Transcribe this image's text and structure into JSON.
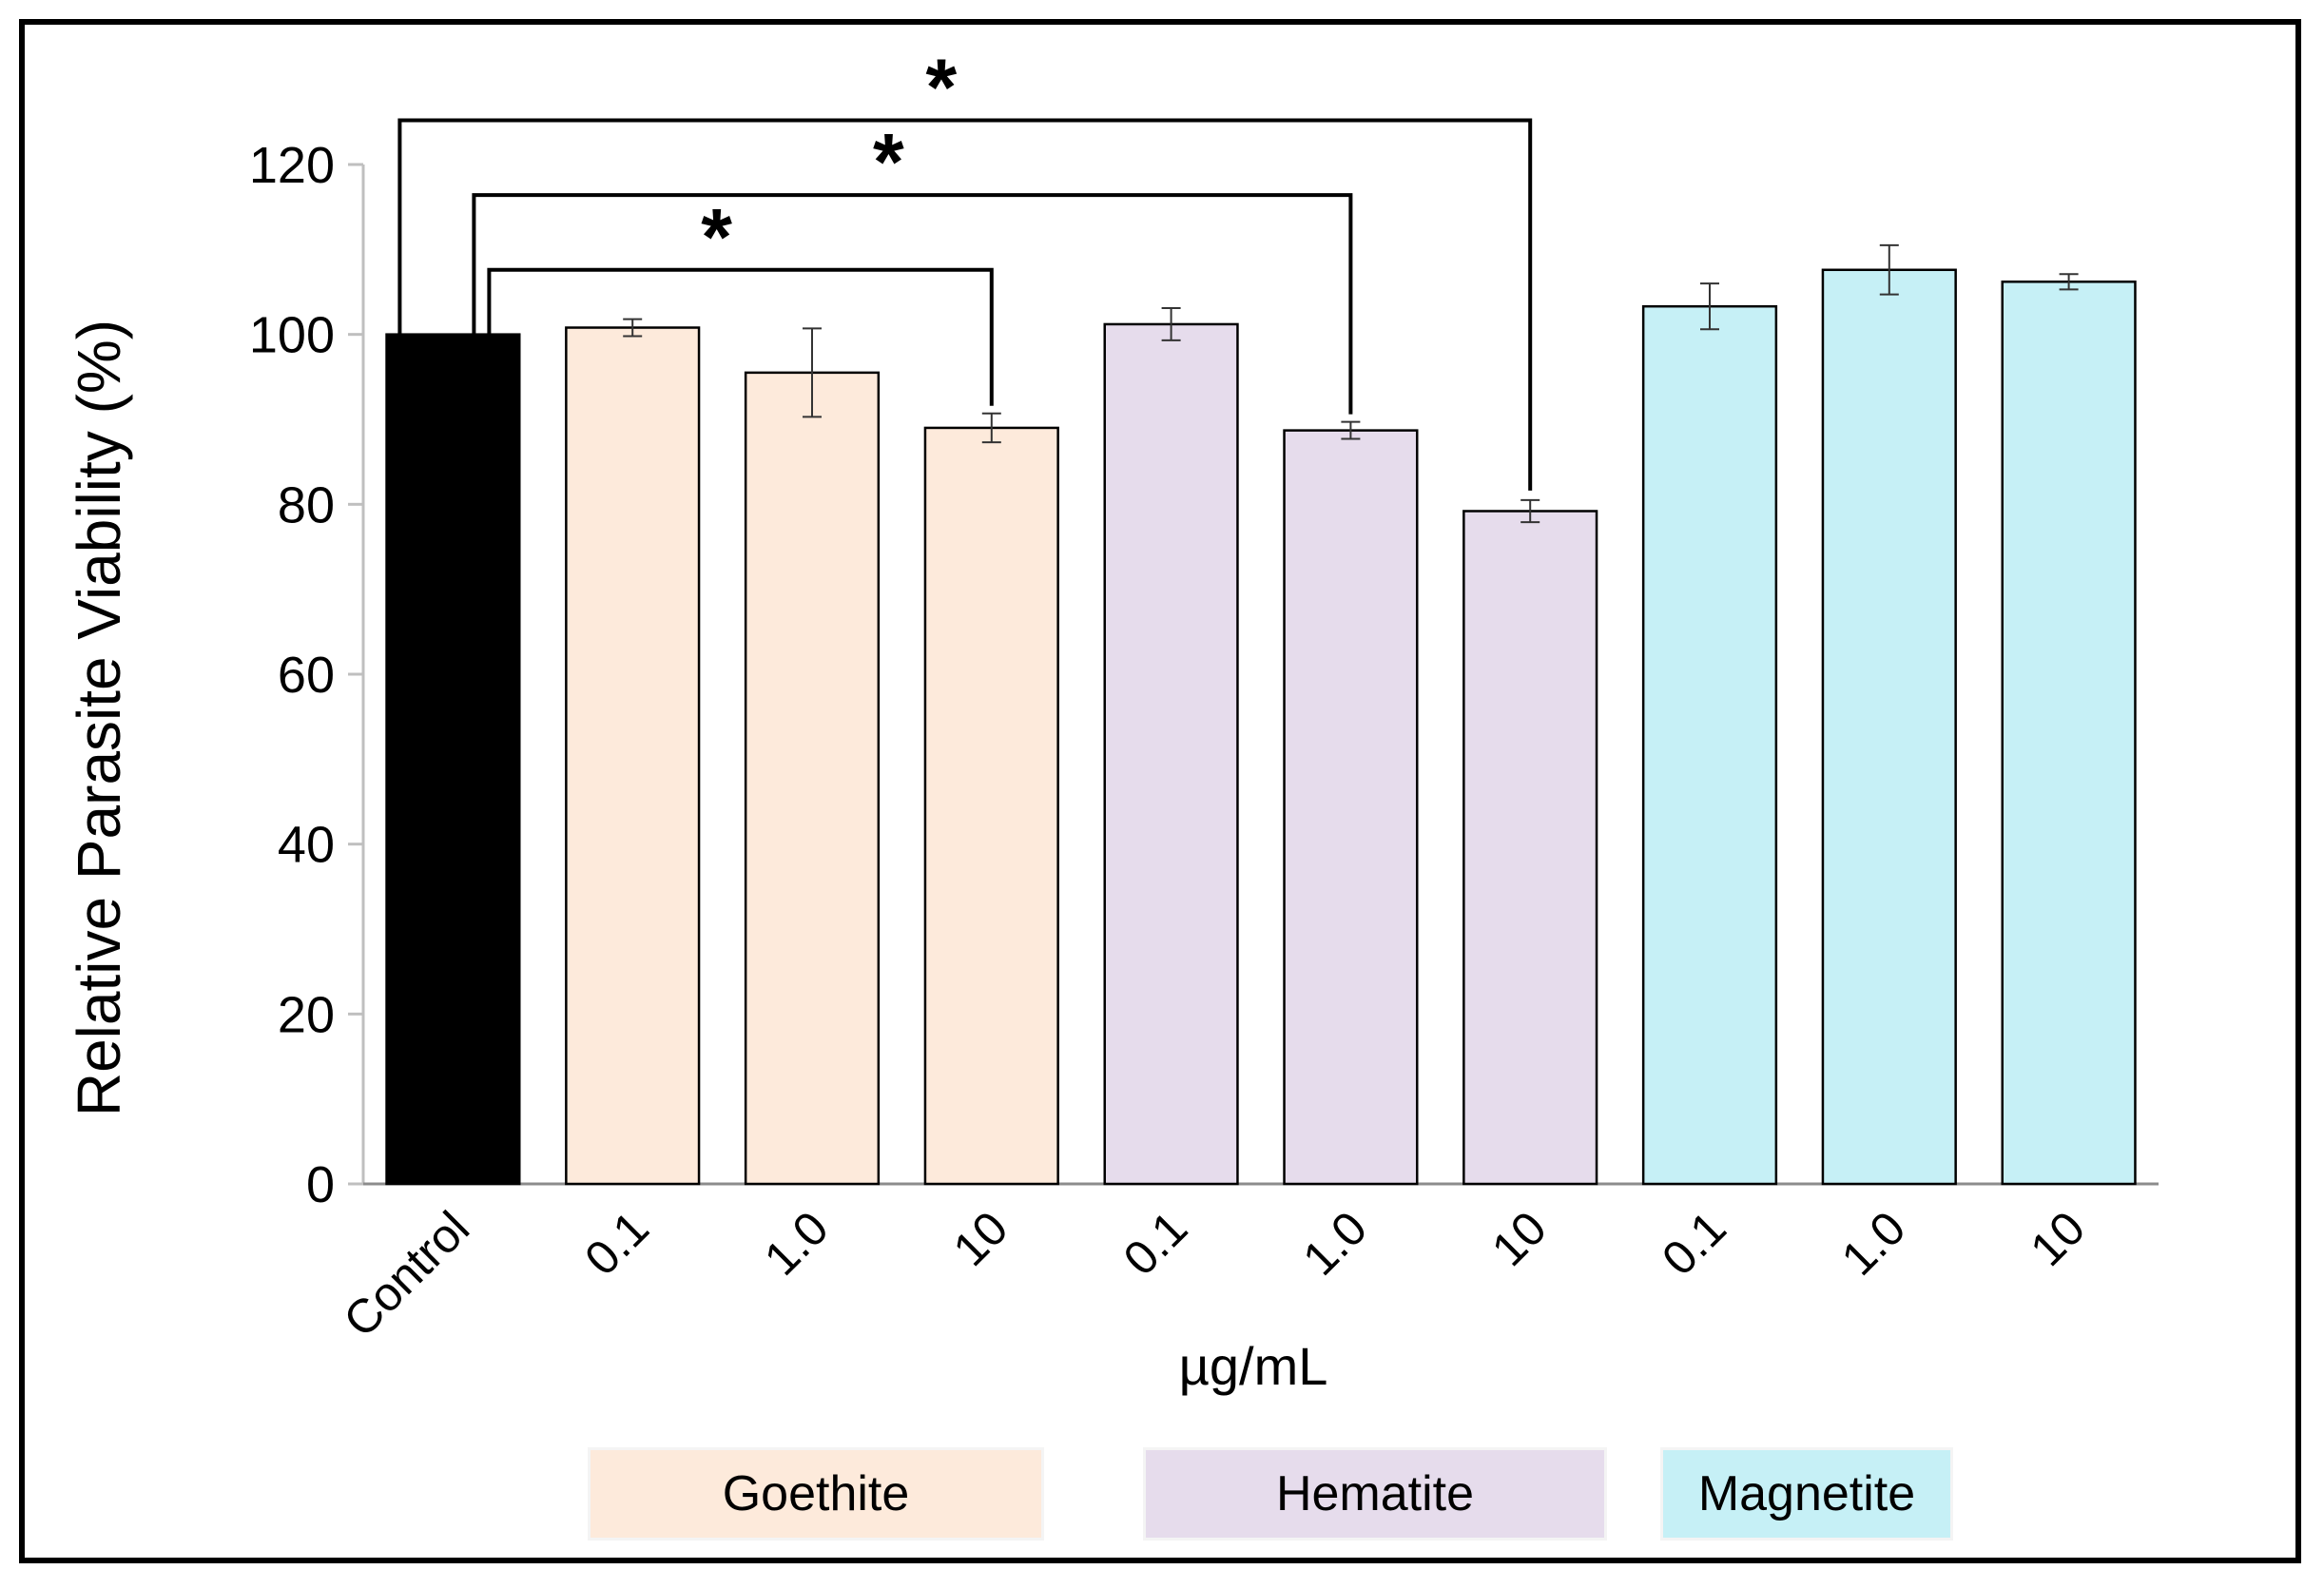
{
  "chart_data": {
    "type": "bar",
    "title": "",
    "xlabel": "µg/mL",
    "ylabel": "Relative Parasite Viability (%)",
    "ylim": [
      0,
      120
    ],
    "yticks": [
      0,
      20,
      40,
      60,
      80,
      100,
      120
    ],
    "grid": false,
    "categories": [
      "Control",
      "0.1",
      "1.0",
      "10",
      "0.1",
      "1.0",
      "10",
      "0.1",
      "1.0",
      "10"
    ],
    "groups": [
      "Control",
      "Goethite",
      "Goethite",
      "Goethite",
      "Hematite",
      "Hematite",
      "Hematite",
      "Magnetite",
      "Magnetite",
      "Magnetite"
    ],
    "values": [
      100,
      100.8,
      95.5,
      89,
      101.2,
      88.7,
      79.2,
      103.3,
      107.6,
      106.2
    ],
    "errors": [
      0,
      1.0,
      5.2,
      1.7,
      1.9,
      1.0,
      1.3,
      2.7,
      2.9,
      0.9
    ],
    "colors": {
      "Control": "#000000",
      "Goethite": "#fdeadb",
      "Hematite": "#e6dcec",
      "Magnetite": "#c6f0f6"
    },
    "legend": [
      {
        "label": "Goethite",
        "color": "#fdeadb"
      },
      {
        "label": "Hematite",
        "color": "#e6dcec"
      },
      {
        "label": "Magnetite",
        "color": "#c6f0f6"
      }
    ],
    "legend_position": "bottom",
    "significance": [
      {
        "from": 0,
        "to": 3,
        "label": "*"
      },
      {
        "from": 0,
        "to": 5,
        "label": "*"
      },
      {
        "from": 0,
        "to": 6,
        "label": "*"
      }
    ]
  }
}
